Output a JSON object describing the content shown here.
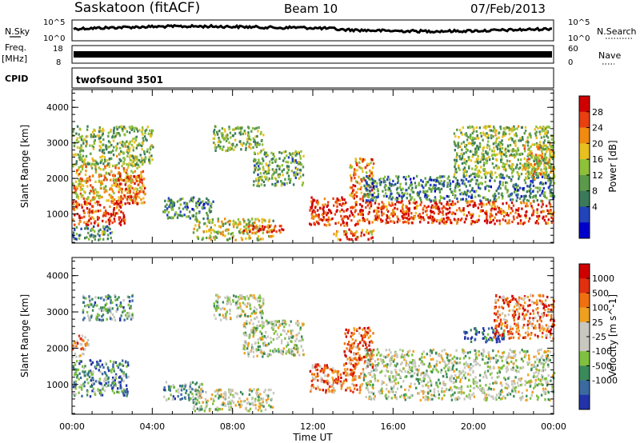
{
  "header": {
    "station": "Saskatoon (fitACF)",
    "beam": "Beam 10",
    "date": "07/Feb/2013"
  },
  "top_panels": {
    "nsky_label": "N.Sky",
    "nsky_ticks": [
      "10^5",
      "10^0"
    ],
    "nsearch_label": "N.Search",
    "nsearch_ticks": [
      "10^5",
      "10^0"
    ],
    "freq_label": "Freq.",
    "freq_unit": "[MHz]",
    "freq_ticks": [
      "18",
      "8"
    ],
    "nave_label": "Nave",
    "nave_ticks": [
      "60",
      "0"
    ],
    "cpid_label": "CPID",
    "cpid_value": "twofsound 3501"
  },
  "chart_data": [
    {
      "type": "heatmap",
      "name": "power",
      "ylabel": "Slant Range [km]",
      "xlabel": "Time UT",
      "x_ticks": [
        "00:00",
        "04:00",
        "08:00",
        "12:00",
        "16:00",
        "20:00",
        "00:00"
      ],
      "y_ticks": [
        1000,
        2000,
        3000,
        4000
      ],
      "xlim_hours": [
        0,
        24
      ],
      "ylim_km": [
        180,
        4500
      ],
      "colorbar": {
        "label": "Power [dB]",
        "ticks": [
          "28",
          "24",
          "20",
          "16",
          "12",
          "8",
          "4"
        ],
        "colors": [
          "#0000cc",
          "#2244bb",
          "#3a7a5a",
          "#5a9a4a",
          "#8fc03a",
          "#e8c020",
          "#f08a10",
          "#e84010",
          "#d00000"
        ]
      },
      "regions": [
        {
          "t": [
            0.0,
            2.6
          ],
          "r": [
            700,
            1400
          ],
          "level": 0.85
        },
        {
          "t": [
            0.0,
            3.5
          ],
          "r": [
            1400,
            2400
          ],
          "level": 0.65
        },
        {
          "t": [
            2.2,
            3.6
          ],
          "r": [
            1300,
            2100
          ],
          "level": 0.8
        },
        {
          "t": [
            0.0,
            4.0
          ],
          "r": [
            2400,
            3500
          ],
          "level": 0.45
        },
        {
          "t": [
            0.0,
            2.0
          ],
          "r": [
            300,
            700
          ],
          "level": 0.35
        },
        {
          "t": [
            4.5,
            7.0
          ],
          "r": [
            900,
            1500
          ],
          "level": 0.3
        },
        {
          "t": [
            6.0,
            10.0
          ],
          "r": [
            300,
            900
          ],
          "level": 0.55
        },
        {
          "t": [
            8.5,
            10.5
          ],
          "r": [
            500,
            700
          ],
          "level": 0.95
        },
        {
          "t": [
            7.0,
            9.5
          ],
          "r": [
            2800,
            3500
          ],
          "level": 0.45
        },
        {
          "t": [
            9.0,
            11.5
          ],
          "r": [
            1800,
            2800
          ],
          "level": 0.4
        },
        {
          "t": [
            11.8,
            14.5
          ],
          "r": [
            700,
            1500
          ],
          "level": 0.9
        },
        {
          "t": [
            13.0,
            15.0
          ],
          "r": [
            300,
            600
          ],
          "level": 0.75
        },
        {
          "t": [
            13.8,
            15.0
          ],
          "r": [
            1500,
            2600
          ],
          "level": 0.7
        },
        {
          "t": [
            14.5,
            24.0
          ],
          "r": [
            750,
            1400
          ],
          "level": 0.85
        },
        {
          "t": [
            14.5,
            24.0
          ],
          "r": [
            1400,
            2100
          ],
          "level": 0.3
        },
        {
          "t": [
            19.0,
            24.0
          ],
          "r": [
            2100,
            3500
          ],
          "level": 0.45
        },
        {
          "t": [
            22.5,
            24.0
          ],
          "r": [
            2000,
            3000
          ],
          "level": 0.6
        }
      ]
    },
    {
      "type": "heatmap",
      "name": "velocity",
      "ylabel": "Slant Range [km]",
      "xlabel": "Time UT",
      "x_ticks": [
        "00:00",
        "04:00",
        "08:00",
        "12:00",
        "16:00",
        "20:00",
        "00:00"
      ],
      "y_ticks": [
        1000,
        2000,
        3000,
        4000
      ],
      "xlim_hours": [
        0,
        24
      ],
      "ylim_km": [
        180,
        4500
      ],
      "colorbar": {
        "label": "Velocity [m s^-1]",
        "ticks": [
          "1000",
          "500",
          "100",
          "25",
          "-25",
          "-100",
          "-500",
          "-1000"
        ],
        "colors": [
          "#2233aa",
          "#3a6aa0",
          "#3a8a5a",
          "#80c040",
          "#c8c8c0",
          "#c8c8c0",
          "#f0a020",
          "#f07010",
          "#e03010",
          "#d00000"
        ]
      },
      "regions": [
        {
          "t": [
            0.0,
            2.8
          ],
          "r": [
            700,
            1700
          ],
          "level": 0.25
        },
        {
          "t": [
            0.0,
            0.8
          ],
          "r": [
            1800,
            2400
          ],
          "level": 0.7
        },
        {
          "t": [
            0.5,
            3.0
          ],
          "r": [
            2800,
            3500
          ],
          "level": 0.3
        },
        {
          "t": [
            4.5,
            6.5
          ],
          "r": [
            600,
            1100
          ],
          "level": 0.3
        },
        {
          "t": [
            6.0,
            10.0
          ],
          "r": [
            300,
            900
          ],
          "level": 0.45
        },
        {
          "t": [
            7.0,
            9.5
          ],
          "r": [
            2800,
            3500
          ],
          "level": 0.45
        },
        {
          "t": [
            8.5,
            11.5
          ],
          "r": [
            1800,
            2800
          ],
          "level": 0.45
        },
        {
          "t": [
            11.8,
            14.5
          ],
          "r": [
            800,
            1600
          ],
          "level": 0.75
        },
        {
          "t": [
            13.5,
            15.0
          ],
          "r": [
            1500,
            2600
          ],
          "level": 0.8
        },
        {
          "t": [
            14.5,
            24.0
          ],
          "r": [
            600,
            2000
          ],
          "level": 0.45
        },
        {
          "t": [
            19.5,
            21.5
          ],
          "r": [
            2200,
            2600
          ],
          "level": 0.1
        },
        {
          "t": [
            21.0,
            24.0
          ],
          "r": [
            2300,
            3500
          ],
          "level": 0.75
        }
      ]
    }
  ]
}
